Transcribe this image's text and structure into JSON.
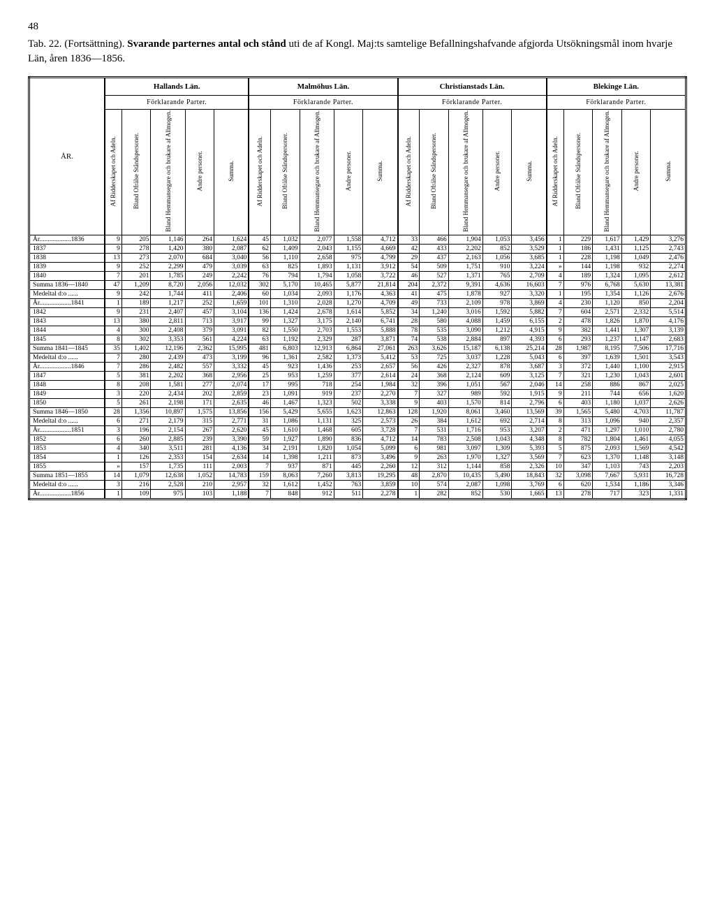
{
  "page_number": "48",
  "title_prefix": "Tab. 22. (Fortsättning). ",
  "title_bold": "Svarande parternes antal och stånd",
  "title_rest": " uti de af Kongl. Maj:ts samtelige Befallningshafvande afgjorda Utsökningsmål inom hvarje Län, åren 1836—1856.",
  "year_header": "ÅR.",
  "regions": [
    "Hallands Län.",
    "Malmöhus Län.",
    "Christianstads Län.",
    "Blekinge Län."
  ],
  "sub_header": "Förklarande Parter.",
  "col_headers": [
    "Af Ridderskapet och Adeln.",
    "Bland Ofrälse Ståndspersoner.",
    "Bland Hemmansegare och brukare af Allmogen.",
    "Andre personer.",
    "Summa."
  ],
  "rows": [
    {
      "label": "År...................1836",
      "v": [
        [
          9,
          205,
          1146,
          264,
          1624
        ],
        [
          45,
          1032,
          2077,
          1558,
          4712
        ],
        [
          33,
          466,
          1904,
          1053,
          3456
        ],
        [
          1,
          229,
          1617,
          1429,
          3276
        ]
      ]
    },
    {
      "label": "1837",
      "v": [
        [
          9,
          278,
          1420,
          380,
          2087
        ],
        [
          62,
          1409,
          2043,
          1155,
          4669
        ],
        [
          42,
          433,
          2202,
          852,
          3529
        ],
        [
          1,
          186,
          1431,
          1125,
          2743
        ]
      ]
    },
    {
      "label": "1838",
      "v": [
        [
          13,
          273,
          2070,
          684,
          3040
        ],
        [
          56,
          1110,
          2658,
          975,
          4799
        ],
        [
          29,
          437,
          2163,
          1056,
          3685
        ],
        [
          1,
          228,
          1198,
          1049,
          2476
        ]
      ]
    },
    {
      "label": "1839",
      "v": [
        [
          9,
          252,
          2299,
          479,
          3039
        ],
        [
          63,
          825,
          1893,
          1131,
          3912
        ],
        [
          54,
          509,
          1751,
          910,
          3224
        ],
        [
          "»",
          144,
          1198,
          932,
          2274
        ]
      ]
    },
    {
      "label": "1840",
      "v": [
        [
          7,
          201,
          1785,
          249,
          2242
        ],
        [
          76,
          794,
          1794,
          1058,
          3722
        ],
        [
          46,
          527,
          1371,
          765,
          2709
        ],
        [
          4,
          189,
          1324,
          1095,
          2612
        ]
      ]
    },
    {
      "label": "Summa 1836—1840",
      "summary": true,
      "v": [
        [
          47,
          1209,
          8720,
          2056,
          12032
        ],
        [
          302,
          5170,
          10465,
          5877,
          21814
        ],
        [
          204,
          2372,
          9391,
          4636,
          16603
        ],
        [
          7,
          976,
          6768,
          5630,
          13381
        ]
      ]
    },
    {
      "label": "Medeltal d:o ......",
      "summary": true,
      "v": [
        [
          9,
          242,
          1744,
          411,
          2406
        ],
        [
          60,
          1034,
          2093,
          1176,
          4363
        ],
        [
          41,
          475,
          1878,
          927,
          3320
        ],
        [
          1,
          195,
          1354,
          1126,
          2676
        ]
      ]
    },
    {
      "label": "År...................1841",
      "v": [
        [
          1,
          189,
          1217,
          252,
          1659
        ],
        [
          101,
          1310,
          2028,
          1270,
          4709
        ],
        [
          49,
          733,
          2109,
          978,
          3869
        ],
        [
          4,
          230,
          1120,
          850,
          2204
        ]
      ]
    },
    {
      "label": "1842",
      "v": [
        [
          9,
          231,
          2407,
          457,
          3104
        ],
        [
          136,
          1424,
          2678,
          1614,
          5852
        ],
        [
          34,
          1240,
          3016,
          1592,
          5882
        ],
        [
          7,
          604,
          2571,
          2332,
          5514
        ]
      ]
    },
    {
      "label": "1843",
      "v": [
        [
          13,
          380,
          2811,
          713,
          3917
        ],
        [
          99,
          1327,
          3175,
          2140,
          6741
        ],
        [
          28,
          580,
          4088,
          1459,
          6155
        ],
        [
          2,
          478,
          1826,
          1870,
          4176
        ]
      ]
    },
    {
      "label": "1844",
      "v": [
        [
          4,
          300,
          2408,
          379,
          3091
        ],
        [
          82,
          1550,
          2703,
          1553,
          5888
        ],
        [
          78,
          535,
          3090,
          1212,
          4915
        ],
        [
          9,
          382,
          1441,
          1307,
          3139
        ]
      ]
    },
    {
      "label": "1845",
      "v": [
        [
          8,
          302,
          3353,
          561,
          4224
        ],
        [
          63,
          1192,
          2329,
          287,
          3871
        ],
        [
          74,
          538,
          2884,
          897,
          4393
        ],
        [
          6,
          293,
          1237,
          1147,
          2683
        ]
      ]
    },
    {
      "label": "Summa 1841—1845",
      "summary": true,
      "v": [
        [
          35,
          1402,
          12196,
          2362,
          15995
        ],
        [
          481,
          6803,
          12913,
          6864,
          27061
        ],
        [
          263,
          3626,
          15187,
          6138,
          25214
        ],
        [
          28,
          1987,
          8195,
          7506,
          17716
        ]
      ]
    },
    {
      "label": "Medeltal d:o ......",
      "summary": true,
      "v": [
        [
          7,
          280,
          2439,
          473,
          3199
        ],
        [
          96,
          1361,
          2582,
          1373,
          5412
        ],
        [
          53,
          725,
          3037,
          1228,
          5043
        ],
        [
          6,
          397,
          1639,
          1501,
          3543
        ]
      ]
    },
    {
      "label": "År...................1846",
      "v": [
        [
          7,
          286,
          2482,
          557,
          3332
        ],
        [
          45,
          923,
          1436,
          253,
          2657
        ],
        [
          56,
          426,
          2327,
          878,
          3687
        ],
        [
          3,
          372,
          1440,
          1100,
          2915
        ]
      ]
    },
    {
      "label": "1847",
      "v": [
        [
          5,
          381,
          2202,
          368,
          2956
        ],
        [
          25,
          953,
          1259,
          377,
          2614
        ],
        [
          24,
          368,
          2124,
          609,
          3125
        ],
        [
          7,
          321,
          1230,
          1043,
          2601
        ]
      ]
    },
    {
      "label": "1848",
      "v": [
        [
          8,
          208,
          1581,
          277,
          2074
        ],
        [
          17,
          995,
          718,
          254,
          1984
        ],
        [
          32,
          396,
          1051,
          567,
          2046
        ],
        [
          14,
          258,
          886,
          867,
          2025
        ]
      ]
    },
    {
      "label": "1849",
      "v": [
        [
          3,
          220,
          2434,
          202,
          2859
        ],
        [
          23,
          1091,
          919,
          237,
          2270
        ],
        [
          7,
          327,
          989,
          592,
          1915
        ],
        [
          9,
          211,
          744,
          656,
          1620
        ]
      ]
    },
    {
      "label": "1850",
      "v": [
        [
          5,
          261,
          2198,
          171,
          2635
        ],
        [
          46,
          1467,
          1323,
          502,
          3338
        ],
        [
          9,
          403,
          1570,
          814,
          2796
        ],
        [
          6,
          403,
          1180,
          1037,
          2626
        ]
      ]
    },
    {
      "label": "Summa 1846—1850",
      "summary": true,
      "v": [
        [
          28,
          1356,
          10897,
          1575,
          13856
        ],
        [
          156,
          5429,
          5655,
          1623,
          12863
        ],
        [
          128,
          1920,
          8061,
          3460,
          13569
        ],
        [
          39,
          1565,
          5480,
          4703,
          11787
        ]
      ]
    },
    {
      "label": "Medeltal d:o ......",
      "summary": true,
      "v": [
        [
          6,
          271,
          2179,
          315,
          2771
        ],
        [
          31,
          1086,
          1131,
          325,
          2573
        ],
        [
          26,
          384,
          1612,
          692,
          2714
        ],
        [
          8,
          313,
          1096,
          940,
          2357
        ]
      ]
    },
    {
      "label": "År...................1851",
      "v": [
        [
          3,
          196,
          2154,
          267,
          2620
        ],
        [
          45,
          1610,
          1468,
          605,
          3728
        ],
        [
          7,
          531,
          1716,
          953,
          3207
        ],
        [
          2,
          471,
          1297,
          1010,
          2780
        ]
      ]
    },
    {
      "label": "1852",
      "v": [
        [
          6,
          260,
          2885,
          239,
          3390
        ],
        [
          59,
          1927,
          1890,
          836,
          4712
        ],
        [
          14,
          783,
          2508,
          1043,
          4348
        ],
        [
          8,
          782,
          1804,
          1461,
          4055
        ]
      ]
    },
    {
      "label": "1853",
      "v": [
        [
          4,
          340,
          3511,
          281,
          4136
        ],
        [
          34,
          2191,
          1820,
          1054,
          5099
        ],
        [
          6,
          981,
          3097,
          1309,
          5393
        ],
        [
          5,
          875,
          2093,
          1569,
          4542
        ]
      ]
    },
    {
      "label": "1854",
      "v": [
        [
          1,
          126,
          2353,
          154,
          2634
        ],
        [
          14,
          1398,
          1211,
          873,
          3496
        ],
        [
          9,
          263,
          1970,
          1327,
          3569
        ],
        [
          7,
          623,
          1370,
          1148,
          3148
        ]
      ]
    },
    {
      "label": "1855",
      "v": [
        [
          "»",
          157,
          1735,
          111,
          2003
        ],
        [
          7,
          937,
          871,
          445,
          2260
        ],
        [
          12,
          312,
          1144,
          858,
          2326
        ],
        [
          10,
          347,
          1103,
          743,
          2203
        ]
      ]
    },
    {
      "label": "Summa 1851—1855",
      "summary": true,
      "v": [
        [
          14,
          1079,
          12638,
          1052,
          14783
        ],
        [
          159,
          8063,
          7260,
          3813,
          19295
        ],
        [
          48,
          2870,
          10435,
          5490,
          18843
        ],
        [
          32,
          3098,
          7667,
          5931,
          16728
        ]
      ]
    },
    {
      "label": "Medeltal d:o ......",
      "summary": true,
      "v": [
        [
          3,
          216,
          2528,
          210,
          2957
        ],
        [
          32,
          1612,
          1452,
          763,
          3859
        ],
        [
          10,
          574,
          2087,
          1098,
          3769
        ],
        [
          6,
          620,
          1534,
          1186,
          3346
        ]
      ]
    },
    {
      "label": "År...................1856",
      "v": [
        [
          1,
          109,
          975,
          103,
          1188
        ],
        [
          7,
          848,
          912,
          511,
          2278
        ],
        [
          1,
          282,
          852,
          530,
          1665
        ],
        [
          13,
          278,
          717,
          323,
          1331
        ]
      ]
    }
  ]
}
